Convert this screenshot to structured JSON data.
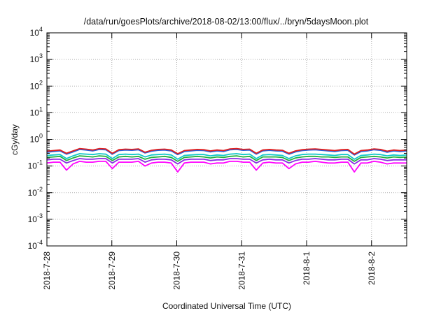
{
  "chart_data": {
    "type": "line",
    "title": "/data/run/goesPlots/archive/2018-08-02/13:00/flux/../bryn/5daysMoon.plot",
    "xlabel": "Coordinated Universal Time (UTC)",
    "ylabel": "cGy/day",
    "yscale": "log",
    "ylim": [
      0.0001,
      10000
    ],
    "xlim": [
      "2018-07-28",
      "2018-08-02T13:00"
    ],
    "grid": true,
    "x_ticks": [
      "2018-7-28",
      "2018-7-29",
      "2018-7-30",
      "2018-7-31",
      "2018-8-1",
      "2018-8-2"
    ],
    "y_ticks": [
      {
        "base": "10",
        "exp": "4"
      },
      {
        "base": "10",
        "exp": "3"
      },
      {
        "base": "10",
        "exp": "2"
      },
      {
        "base": "10",
        "exp": "1"
      },
      {
        "base": "10",
        "exp": "0"
      },
      {
        "base": "10",
        "exp": "-1"
      },
      {
        "base": "10",
        "exp": "-2"
      },
      {
        "base": "10",
        "exp": "-3"
      },
      {
        "base": "10",
        "exp": "-4"
      }
    ],
    "series": [
      {
        "color": "#e02020",
        "values": [
          0.36,
          0.38,
          0.4,
          0.3,
          0.37,
          0.45,
          0.43,
          0.4,
          0.45,
          0.44,
          0.3,
          0.41,
          0.43,
          0.42,
          0.44,
          0.33,
          0.39,
          0.42,
          0.43,
          0.4,
          0.29,
          0.38,
          0.4,
          0.42,
          0.41,
          0.37,
          0.4,
          0.38,
          0.44,
          0.45,
          0.42,
          0.43,
          0.3,
          0.4,
          0.42,
          0.4,
          0.39,
          0.3,
          0.37,
          0.41,
          0.43,
          0.44,
          0.42,
          0.4,
          0.38,
          0.41,
          0.42,
          0.28,
          0.38,
          0.4,
          0.44,
          0.42,
          0.36,
          0.4,
          0.38,
          0.4
        ]
      },
      {
        "color": "#2060e0",
        "values": [
          0.33,
          0.35,
          0.37,
          0.28,
          0.34,
          0.42,
          0.4,
          0.37,
          0.42,
          0.41,
          0.28,
          0.38,
          0.4,
          0.39,
          0.41,
          0.31,
          0.36,
          0.39,
          0.4,
          0.37,
          0.27,
          0.35,
          0.37,
          0.39,
          0.38,
          0.34,
          0.37,
          0.35,
          0.41,
          0.42,
          0.39,
          0.4,
          0.28,
          0.37,
          0.39,
          0.37,
          0.36,
          0.28,
          0.34,
          0.38,
          0.4,
          0.41,
          0.39,
          0.37,
          0.35,
          0.38,
          0.39,
          0.26,
          0.35,
          0.37,
          0.41,
          0.39,
          0.33,
          0.37,
          0.35,
          0.37
        ]
      },
      {
        "color": "#10c8c8",
        "values": [
          0.25,
          0.26,
          0.27,
          0.19,
          0.24,
          0.29,
          0.28,
          0.27,
          0.29,
          0.28,
          0.19,
          0.27,
          0.28,
          0.27,
          0.28,
          0.22,
          0.26,
          0.27,
          0.28,
          0.26,
          0.18,
          0.25,
          0.26,
          0.27,
          0.27,
          0.24,
          0.26,
          0.25,
          0.28,
          0.29,
          0.27,
          0.28,
          0.19,
          0.26,
          0.27,
          0.26,
          0.25,
          0.19,
          0.24,
          0.27,
          0.28,
          0.28,
          0.27,
          0.26,
          0.25,
          0.27,
          0.27,
          0.18,
          0.25,
          0.26,
          0.28,
          0.27,
          0.24,
          0.26,
          0.25,
          0.26
        ]
      },
      {
        "color": "#20b040",
        "values": [
          0.21,
          0.22,
          0.23,
          0.16,
          0.2,
          0.24,
          0.23,
          0.22,
          0.24,
          0.23,
          0.16,
          0.22,
          0.23,
          0.22,
          0.23,
          0.18,
          0.21,
          0.22,
          0.23,
          0.21,
          0.15,
          0.21,
          0.22,
          0.23,
          0.22,
          0.2,
          0.22,
          0.21,
          0.23,
          0.24,
          0.22,
          0.23,
          0.16,
          0.22,
          0.22,
          0.22,
          0.21,
          0.16,
          0.2,
          0.22,
          0.23,
          0.23,
          0.22,
          0.22,
          0.21,
          0.22,
          0.22,
          0.15,
          0.21,
          0.22,
          0.23,
          0.22,
          0.2,
          0.22,
          0.21,
          0.22
        ]
      },
      {
        "color": "#8a2be2",
        "values": [
          0.17,
          0.18,
          0.18,
          0.13,
          0.16,
          0.19,
          0.18,
          0.18,
          0.19,
          0.19,
          0.13,
          0.18,
          0.18,
          0.18,
          0.19,
          0.14,
          0.17,
          0.18,
          0.18,
          0.17,
          0.12,
          0.17,
          0.18,
          0.18,
          0.18,
          0.16,
          0.17,
          0.17,
          0.19,
          0.19,
          0.18,
          0.18,
          0.13,
          0.17,
          0.18,
          0.17,
          0.17,
          0.13,
          0.16,
          0.18,
          0.18,
          0.19,
          0.18,
          0.17,
          0.17,
          0.18,
          0.18,
          0.12,
          0.17,
          0.17,
          0.19,
          0.18,
          0.16,
          0.17,
          0.17,
          0.17
        ]
      },
      {
        "color": "#ff00ff",
        "values": [
          0.13,
          0.14,
          0.14,
          0.07,
          0.12,
          0.15,
          0.14,
          0.14,
          0.15,
          0.15,
          0.08,
          0.14,
          0.14,
          0.14,
          0.15,
          0.1,
          0.13,
          0.14,
          0.14,
          0.13,
          0.06,
          0.13,
          0.14,
          0.14,
          0.14,
          0.12,
          0.13,
          0.13,
          0.15,
          0.15,
          0.14,
          0.14,
          0.07,
          0.13,
          0.14,
          0.13,
          0.13,
          0.08,
          0.12,
          0.14,
          0.14,
          0.15,
          0.14,
          0.13,
          0.13,
          0.14,
          0.14,
          0.06,
          0.13,
          0.13,
          0.15,
          0.14,
          0.12,
          0.13,
          0.13,
          0.13
        ]
      }
    ]
  }
}
